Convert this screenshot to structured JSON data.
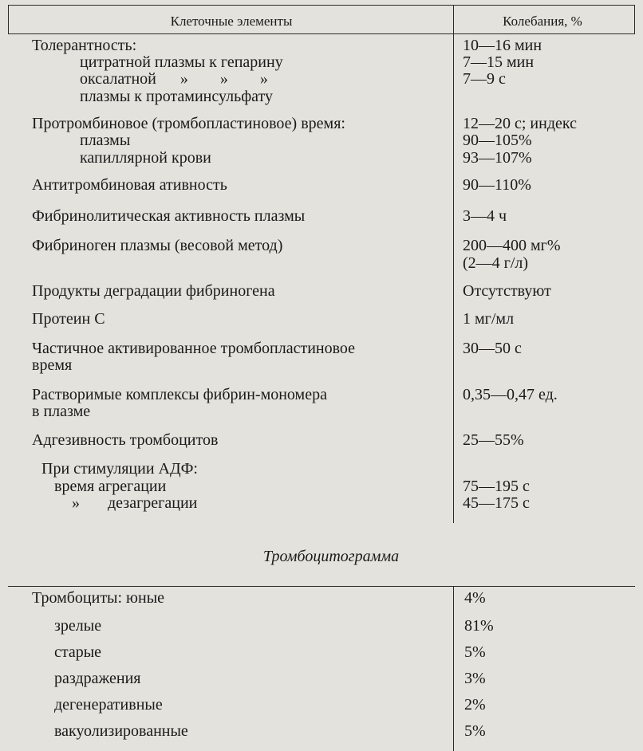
{
  "table": {
    "header": [
      "Клеточные элементы",
      "Колебания, %"
    ],
    "rows": [
      {
        "left": [
          "Толерантность:",
          "цитратной плазмы к гепарину",
          "оксалатной      »        »        »",
          "плазмы к протаминсульфату"
        ],
        "right": [
          "10—16 мин",
          "7—15 мин",
          "7—9 с"
        ]
      },
      {
        "left": [
          "Протромбиновое (тромбопластиновое) время:",
          "плазмы",
          "капиллярной крови"
        ],
        "right": [
          "12—20 с; индекс",
          "90—105%",
          "93—107%"
        ]
      },
      {
        "left": [
          "Антитромбиновая ативность"
        ],
        "right": [
          "90—110%"
        ]
      },
      {
        "left": [
          "Фибринолитическая активность плазмы"
        ],
        "right": [
          "3—4 ч"
        ]
      },
      {
        "left": [
          "Фибриноген плазмы (весовой метод)"
        ],
        "right": [
          "200—400 мг%",
          "(2—4 г/л)"
        ]
      },
      {
        "left": [
          "Продукты деградации фибриногена"
        ],
        "right": [
          "Отсутствуют"
        ]
      },
      {
        "left": [
          "Протеин С"
        ],
        "right": [
          "1 мг/мл"
        ]
      },
      {
        "left": [
          "Частичное активированное тромбопластиновое",
          "время"
        ],
        "right": [
          "30—50 с"
        ]
      },
      {
        "left": [
          "Растворимые комплексы фибрин-мономера",
          "в плазме"
        ],
        "right": [
          "0,35—0,47 ед."
        ]
      },
      {
        "left": [
          "Адгезивность тромбоцитов"
        ],
        "right": [
          "25—55%"
        ]
      },
      {
        "left": [
          "При стимуляции АДФ:",
          "время агрегации",
          "»       дезагрегации"
        ],
        "right": [
          "75—195 с",
          "45—175 с"
        ]
      }
    ]
  },
  "thrombocytogram": {
    "title": "Тромбоцитограмма",
    "rows": [
      [
        "Тромбоциты: юные",
        "4%"
      ],
      [
        "зрелые",
        "81%"
      ],
      [
        "старые",
        "5%"
      ],
      [
        "раздражения",
        "3%"
      ],
      [
        "дегенеративные",
        "2%"
      ],
      [
        "вакуолизированные",
        "5%"
      ]
    ]
  }
}
